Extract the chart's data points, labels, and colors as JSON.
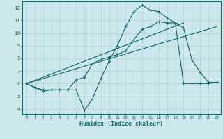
{
  "xlabel": "Humidex (Indice chaleur)",
  "bg_color": "#cce8ec",
  "grid_color": "#b8d8dc",
  "line_color": "#1a6b6b",
  "xlim": [
    -0.5,
    23.5
  ],
  "ylim": [
    3.6,
    12.5
  ],
  "xticks": [
    0,
    1,
    2,
    3,
    4,
    5,
    6,
    7,
    8,
    9,
    10,
    11,
    12,
    13,
    14,
    15,
    16,
    17,
    18,
    19,
    20,
    21,
    22,
    23
  ],
  "yticks": [
    4,
    5,
    6,
    7,
    8,
    9,
    10,
    11,
    12
  ],
  "line1_x": [
    0,
    1,
    2,
    3,
    4,
    5,
    6,
    7,
    8,
    9,
    10,
    11,
    12,
    13,
    14,
    15,
    16,
    17,
    18,
    19,
    20,
    21,
    22,
    23
  ],
  "line1_y": [
    6.0,
    5.7,
    5.4,
    5.5,
    5.5,
    5.5,
    5.5,
    3.9,
    4.8,
    6.4,
    7.8,
    9.0,
    10.5,
    11.7,
    12.2,
    11.8,
    11.7,
    11.2,
    10.8,
    10.4,
    7.9,
    6.9,
    6.1,
    6.1
  ],
  "line2_x": [
    0,
    1,
    2,
    3,
    4,
    5,
    6,
    7,
    8,
    9,
    10,
    11,
    12,
    13,
    14,
    15,
    16,
    17,
    18,
    19,
    20,
    21,
    22,
    23
  ],
  "line2_y": [
    6.0,
    5.7,
    5.5,
    5.5,
    5.5,
    5.5,
    6.3,
    6.5,
    7.6,
    7.9,
    8.1,
    8.3,
    8.6,
    9.5,
    10.3,
    10.5,
    10.9,
    10.8,
    10.8,
    6.0,
    6.0,
    6.0,
    6.0,
    6.1
  ],
  "line3_x": [
    0,
    19
  ],
  "line3_y": [
    6.0,
    10.8
  ],
  "line4_x": [
    0,
    23
  ],
  "line4_y": [
    6.0,
    10.5
  ]
}
